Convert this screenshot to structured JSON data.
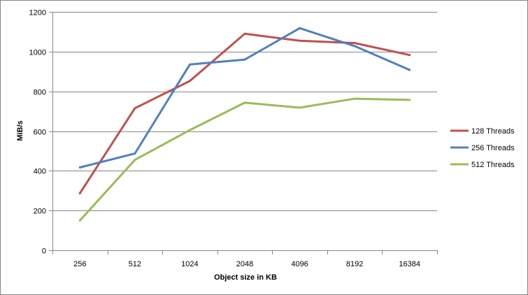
{
  "chart_data": {
    "type": "line",
    "title": "",
    "xlabel": "Object size in KB",
    "ylabel": "MiB/s",
    "categories": [
      "256",
      "512",
      "1024",
      "2048",
      "4096",
      "8192",
      "16384"
    ],
    "ylim": [
      0,
      1200
    ],
    "yticks": [
      "0",
      "200",
      "400",
      "600",
      "800",
      "1000",
      "1200"
    ],
    "grid": true,
    "legend_position": "right",
    "series": [
      {
        "name": "128 Threads",
        "color": "#c0504d",
        "values": [
          287,
          715,
          852,
          1090,
          1055,
          1043,
          983
        ]
      },
      {
        "name": "256 Threads",
        "color": "#4f81bd",
        "values": [
          417,
          487,
          935,
          960,
          1118,
          1028,
          908
        ]
      },
      {
        "name": "512 Threads",
        "color": "#9bbb59",
        "values": [
          150,
          455,
          605,
          743,
          718,
          763,
          757
        ]
      }
    ]
  }
}
